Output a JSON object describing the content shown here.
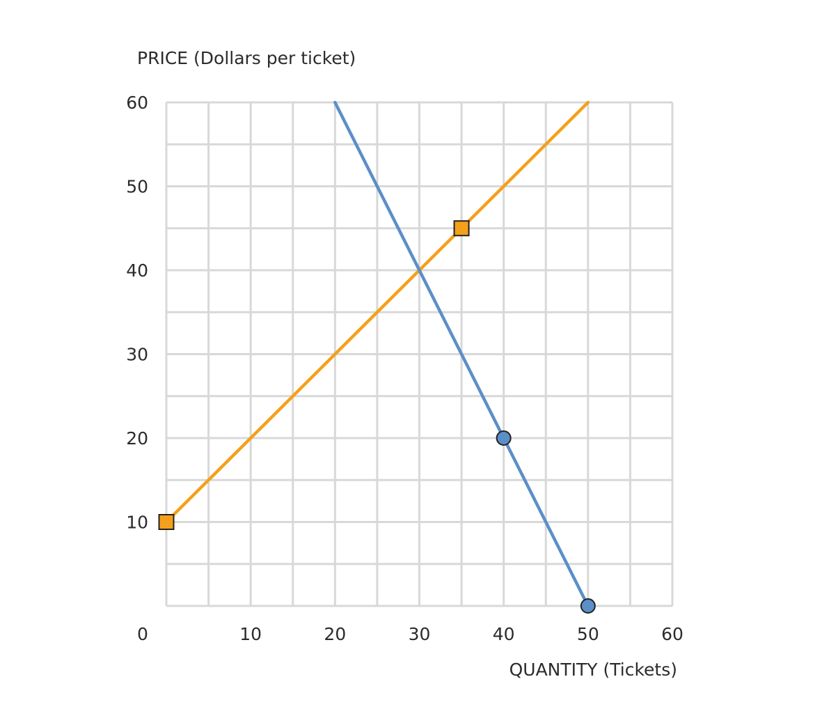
{
  "chart_data": {
    "type": "line",
    "ylabel": "PRICE (Dollars per ticket)",
    "xlabel": "QUANTITY (Tickets)",
    "xlim": [
      0,
      60
    ],
    "ylim": [
      0,
      60
    ],
    "x_ticks": [
      "0",
      "10",
      "20",
      "30",
      "40",
      "50",
      "60"
    ],
    "y_ticks": [
      "60",
      "50",
      "40",
      "30",
      "20",
      "10"
    ],
    "grid": true,
    "grid_step": 5,
    "legend": "none",
    "series": [
      {
        "color": "#f5a01a",
        "marker": "square",
        "line": [
          [
            0,
            10
          ],
          [
            50,
            60
          ]
        ],
        "points": [
          [
            0,
            10
          ],
          [
            35,
            45
          ]
        ]
      },
      {
        "color": "#5b8fc7",
        "marker": "circle",
        "line": [
          [
            20,
            60
          ],
          [
            50,
            0
          ]
        ],
        "points": [
          [
            40,
            20
          ],
          [
            50,
            0
          ]
        ]
      }
    ]
  }
}
